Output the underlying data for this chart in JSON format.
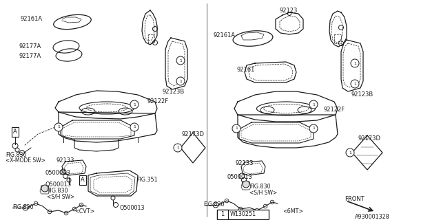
{
  "bg_color": "#ffffff",
  "line_color": "#1a1a1a",
  "part_number": "A930001328",
  "legend_label": "1",
  "legend_part": "W130251",
  "fig_w": 640,
  "fig_h": 320
}
